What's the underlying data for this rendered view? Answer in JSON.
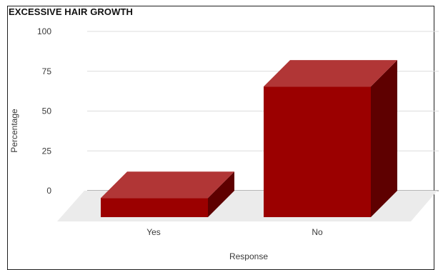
{
  "chart_data": {
    "type": "bar",
    "title": "EXCESSIVE HAIR GROWTH",
    "xlabel": "Response",
    "ylabel": "Percentage",
    "categories": [
      "Yes",
      "No"
    ],
    "values": [
      12,
      82
    ],
    "ylim": [
      0,
      100
    ],
    "yticks": [
      "0",
      "25",
      "50",
      "75",
      "100"
    ],
    "grid": true,
    "legend": "none",
    "render": "3d",
    "colors": {
      "front": "#9b0000",
      "top": "#b13636",
      "side": "#5e0000",
      "floor": "#ebebeb",
      "grid": "#dcdcdc",
      "baseline": "#8a8a8a"
    }
  }
}
